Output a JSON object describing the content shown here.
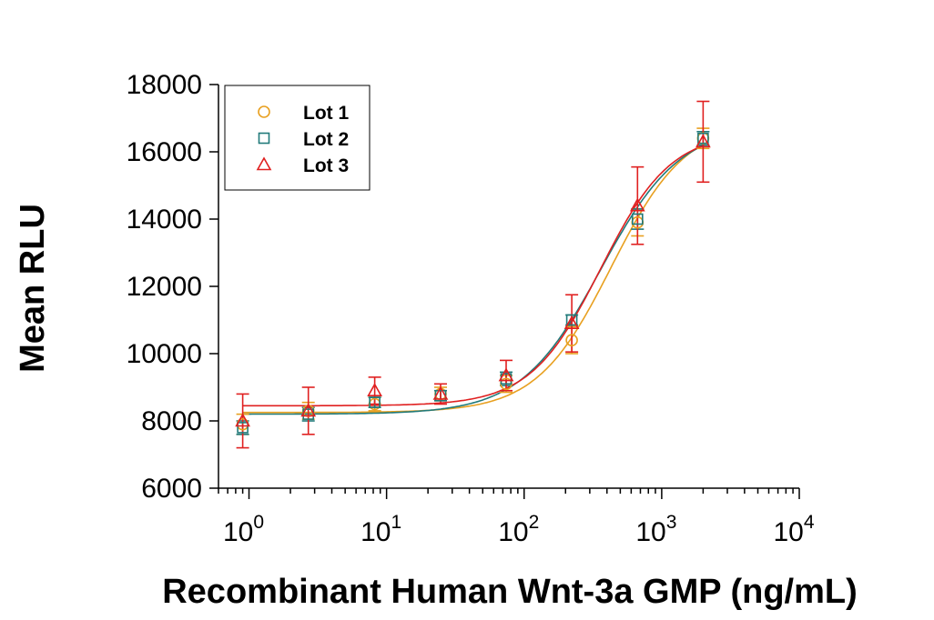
{
  "chart_data": {
    "type": "scatter",
    "xscale": "log",
    "xlim": [
      0.6,
      10000
    ],
    "ylim": [
      6000,
      18000
    ],
    "xlabel": "Recombinant Human Wnt-3a GMP (ng/mL)",
    "ylabel": "Mean RLU",
    "ytick_labels": [
      "6000",
      "8000",
      "10000",
      "12000",
      "14000",
      "16000",
      "18000"
    ],
    "xtick_labels": [
      {
        "base": "10",
        "exp": "0"
      },
      {
        "base": "10",
        "exp": "1"
      },
      {
        "base": "10",
        "exp": "2"
      },
      {
        "base": "10",
        "exp": "3"
      },
      {
        "base": "10",
        "exp": "4"
      }
    ],
    "legend_placement": "top-left",
    "grid": false,
    "x": [
      0.9,
      2.7,
      8.2,
      24.7,
      74,
      222,
      667,
      2000
    ],
    "series": [
      {
        "name": "Lot 1",
        "marker": "circle",
        "color": "#E8A020",
        "y": [
          7900,
          8300,
          8500,
          8800,
          9100,
          10400,
          13900,
          16400
        ],
        "err": [
          300,
          250,
          200,
          200,
          250,
          400,
          400,
          300
        ],
        "fit": {
          "bottom": 8250,
          "top": 16900,
          "ec50": 430,
          "hill": 1.6
        }
      },
      {
        "name": "Lot 2",
        "marker": "square",
        "color": "#217A7A",
        "y": [
          7800,
          8200,
          8550,
          8750,
          9250,
          11000,
          14000,
          16400
        ],
        "err": [
          200,
          200,
          150,
          150,
          200,
          150,
          300,
          200
        ],
        "fit": {
          "bottom": 8200,
          "top": 16800,
          "ec50": 360,
          "hill": 1.5
        }
      },
      {
        "name": "Lot 3",
        "marker": "triangle",
        "color": "#E02020",
        "y": [
          8000,
          8300,
          8900,
          8800,
          9350,
          10900,
          14400,
          16300
        ],
        "err": [
          800,
          700,
          400,
          300,
          450,
          850,
          1150,
          1200
        ],
        "fit": {
          "bottom": 8450,
          "top": 16600,
          "ec50": 360,
          "hill": 1.7
        }
      }
    ]
  }
}
